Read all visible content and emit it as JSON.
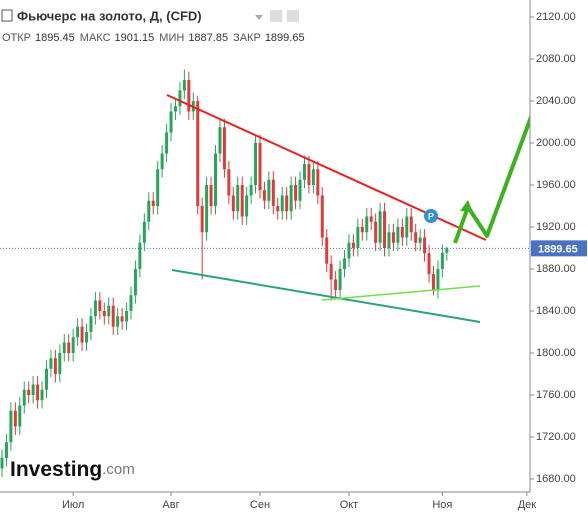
{
  "chart_data": {
    "type": "candlestick",
    "title": "Фьючерс на золото, Д, (CFD)",
    "ohlc_labels": [
      "ОТКР",
      "МАКС",
      "МИН",
      "ЗАКР"
    ],
    "watermark": [
      "Investing",
      ".com"
    ],
    "colors": {
      "up": "#26a65b",
      "down": "#e03a3a"
    },
    "open": [
      1690,
      1700,
      1715,
      1745,
      1730,
      1750,
      1765,
      1760,
      1770,
      1755,
      1765,
      1785,
      1795,
      1780,
      1800,
      1810,
      1800,
      1815,
      1825,
      1810,
      1820,
      1835,
      1850,
      1840,
      1835,
      1845,
      1825,
      1835,
      1830,
      1840,
      1855,
      1880,
      1905,
      1925,
      1945,
      1940,
      1975,
      1990,
      2010,
      2030,
      2035,
      2050,
      2060,
      2030,
      2040,
      1940,
      1915,
      1960,
      1940,
      1990,
      2015,
      1975,
      1950,
      1935,
      1960,
      1930,
      1950,
      1960,
      2000,
      1955,
      1945,
      1965,
      1940,
      1935,
      1950,
      1935,
      1960,
      1945,
      1965,
      1980,
      1960,
      1975,
      1950,
      1910,
      1885,
      1870,
      1860,
      1880,
      1890,
      1905,
      1900,
      1920,
      1915,
      1930,
      1925,
      1905,
      1935,
      1900,
      1915,
      1905,
      1920,
      1910,
      1930,
      1915,
      1905,
      1910,
      1895,
      1875,
      1860,
      1880,
      1895.45
    ],
    "high": [
      1708,
      1723,
      1753,
      1753,
      1758,
      1773,
      1773,
      1778,
      1778,
      1773,
      1793,
      1803,
      1803,
      1808,
      1818,
      1818,
      1823,
      1833,
      1833,
      1828,
      1843,
      1858,
      1858,
      1848,
      1853,
      1853,
      1843,
      1843,
      1848,
      1863,
      1888,
      1913,
      1933,
      1953,
      1953,
      1983,
      1998,
      2018,
      2038,
      2043,
      2058,
      2070,
      2068,
      2048,
      2045,
      1948,
      1968,
      1968,
      1998,
      2023,
      2023,
      1983,
      1958,
      1968,
      1968,
      1958,
      1968,
      2008,
      2008,
      1963,
      1973,
      1973,
      1948,
      1958,
      1958,
      1968,
      1968,
      1973,
      1988,
      1988,
      1983,
      1983,
      1958,
      1918,
      1893,
      1878,
      1888,
      1898,
      1913,
      1913,
      1928,
      1928,
      1938,
      1938,
      1933,
      1943,
      1943,
      1923,
      1923,
      1928,
      1928,
      1938,
      1938,
      1923,
      1918,
      1918,
      1903,
      1883,
      1888,
      1903,
      1901.15
    ],
    "low": [
      1682,
      1692,
      1707,
      1722,
      1722,
      1742,
      1752,
      1752,
      1747,
      1747,
      1757,
      1777,
      1772,
      1772,
      1792,
      1792,
      1792,
      1807,
      1802,
      1802,
      1812,
      1827,
      1832,
      1827,
      1827,
      1817,
      1817,
      1822,
      1822,
      1832,
      1847,
      1872,
      1897,
      1917,
      1932,
      1932,
      1967,
      1982,
      2002,
      2022,
      2027,
      2042,
      2022,
      2022,
      1932,
      1870,
      1907,
      1932,
      1932,
      1982,
      1967,
      1942,
      1927,
      1927,
      1922,
      1922,
      1942,
      1952,
      1947,
      1937,
      1937,
      1932,
      1927,
      1927,
      1927,
      1927,
      1937,
      1937,
      1957,
      1952,
      1952,
      1942,
      1902,
      1877,
      1850,
      1852,
      1852,
      1872,
      1882,
      1892,
      1892,
      1907,
      1907,
      1917,
      1897,
      1897,
      1892,
      1892,
      1897,
      1897,
      1902,
      1902,
      1907,
      1897,
      1897,
      1887,
      1867,
      1855,
      1852,
      1872,
      1887.85
    ],
    "close": [
      1700,
      1715,
      1745,
      1730,
      1750,
      1765,
      1760,
      1770,
      1755,
      1765,
      1785,
      1795,
      1780,
      1800,
      1810,
      1800,
      1815,
      1825,
      1810,
      1820,
      1835,
      1850,
      1840,
      1835,
      1845,
      1825,
      1835,
      1830,
      1840,
      1855,
      1880,
      1905,
      1925,
      1945,
      1940,
      1975,
      1990,
      2010,
      2030,
      2035,
      2050,
      2060,
      2030,
      2040,
      1940,
      1915,
      1960,
      1940,
      1990,
      2015,
      1975,
      1950,
      1935,
      1960,
      1930,
      1950,
      1960,
      2000,
      1955,
      1945,
      1965,
      1940,
      1935,
      1950,
      1935,
      1960,
      1945,
      1965,
      1980,
      1960,
      1975,
      1950,
      1910,
      1885,
      1870,
      1860,
      1880,
      1890,
      1905,
      1900,
      1920,
      1915,
      1930,
      1925,
      1905,
      1935,
      1900,
      1915,
      1905,
      1920,
      1910,
      1930,
      1915,
      1905,
      1910,
      1895,
      1875,
      1860,
      1880,
      1895.45,
      1899.65
    ],
    "xlim": [
      -0.45,
      118.7
    ],
    "xticks": [
      {
        "value": 16,
        "label": "Июл"
      },
      {
        "value": 38,
        "label": "Авг"
      },
      {
        "value": 58,
        "label": "Сен"
      },
      {
        "value": 78,
        "label": "Окт"
      },
      {
        "value": 99,
        "label": "Ноя"
      },
      {
        "value": 118,
        "label": "Дек"
      }
    ],
    "ylim": [
      1669.5,
      2136.2
    ],
    "yticks": [
      {
        "value": 1680,
        "label": "1680.00"
      },
      {
        "value": 1720,
        "label": "1720.00"
      },
      {
        "value": 1760,
        "label": "1760.00"
      },
      {
        "value": 1800,
        "label": "1800.00"
      },
      {
        "value": 1840,
        "label": "1840.00"
      },
      {
        "value": 1880,
        "label": "1880.00"
      },
      {
        "value": 1920,
        "label": "1920.00"
      },
      {
        "value": 1960,
        "label": "1960.00"
      },
      {
        "value": 2000,
        "label": "2000.00"
      },
      {
        "value": 2040,
        "label": "2040.00"
      },
      {
        "value": 2080,
        "label": "2080.00"
      },
      {
        "value": 2120,
        "label": "2120.00"
      }
    ]
  }
}
